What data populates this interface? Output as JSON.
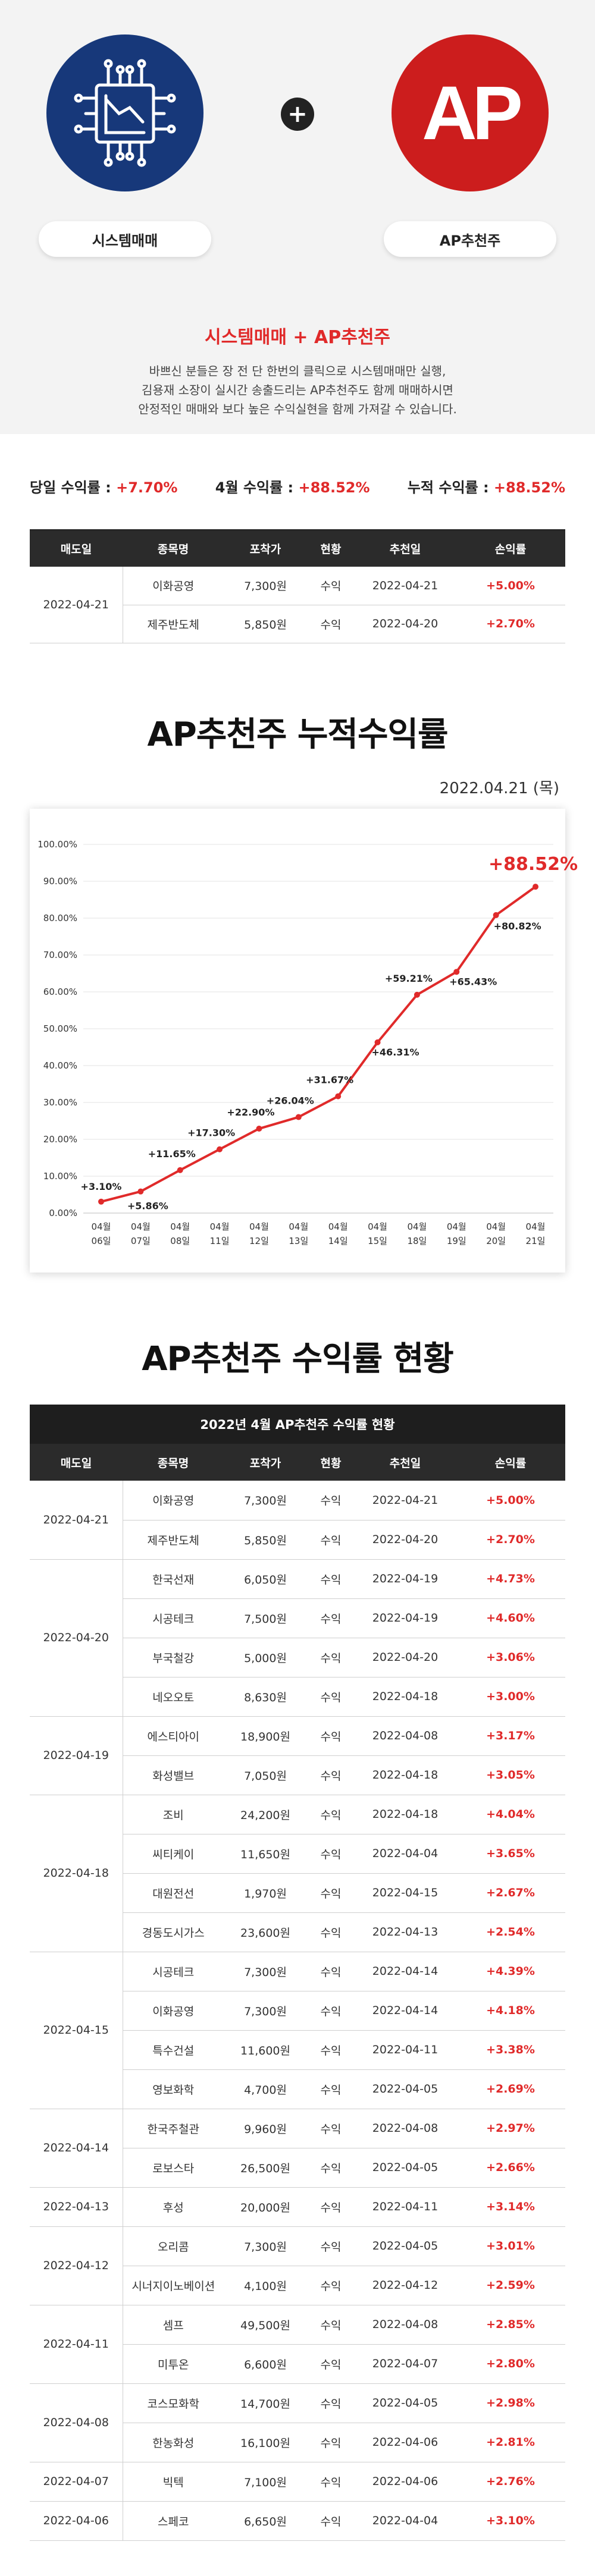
{
  "hero": {
    "left_label": "시스템매매",
    "right_label": "AP추천주",
    "right_logo_text": "AP",
    "plus": "+",
    "colors": {
      "blue": "#17387a",
      "red": "#cc1d1d"
    }
  },
  "intro": {
    "title": "시스템매매 + AP추천주",
    "line1": "바쁘신 분들은 장 전 단 한번의 클릭으로 시스템매매만 실행,",
    "line2": "김용재 소장이 실시간 송출드리는 AP추천주도 함께 매매하시면",
    "line3": "안정적인 매매와 보다 높은 수익실현을 함께 가져갈 수 있습니다."
  },
  "summary": {
    "daily_label": "당일 수익률 : ",
    "daily_value": "+7.70%",
    "month_label": "4월 수익률 : ",
    "month_value": "+88.52%",
    "total_label": "누적 수익률 : ",
    "total_value": "+88.52%"
  },
  "headers": [
    "매도일",
    "종목명",
    "포착가",
    "현황",
    "추천일",
    "손익률"
  ],
  "today_table": {
    "groups": [
      {
        "date": "2022-04-21",
        "rows": [
          {
            "name": "이화공영",
            "price": "7,300원",
            "status": "수익",
            "rec": "2022-04-21",
            "pct": "+5.00%"
          },
          {
            "name": "제주반도체",
            "price": "5,850원",
            "status": "수익",
            "rec": "2022-04-20",
            "pct": "+2.70%"
          }
        ]
      }
    ]
  },
  "chart_section": {
    "title": "AP추천주 누적수익률",
    "date": "2022.04.21 (목)"
  },
  "chart_data": {
    "type": "line",
    "title": "",
    "xlabel": "",
    "ylabel": "",
    "ylim": [
      0,
      100
    ],
    "y_ticks": [
      "0.00%",
      "10.00%",
      "20.00%",
      "30.00%",
      "40.00%",
      "50.00%",
      "60.00%",
      "70.00%",
      "80.00%",
      "90.00%",
      "100.00%"
    ],
    "x_labels": [
      [
        "04월",
        "06일"
      ],
      [
        "04월",
        "07일"
      ],
      [
        "04월",
        "08일"
      ],
      [
        "04월",
        "11일"
      ],
      [
        "04월",
        "12일"
      ],
      [
        "04월",
        "13일"
      ],
      [
        "04월",
        "14일"
      ],
      [
        "04월",
        "15일"
      ],
      [
        "04월",
        "18일"
      ],
      [
        "04월",
        "19일"
      ],
      [
        "04월",
        "20일"
      ],
      [
        "04월",
        "21일"
      ]
    ],
    "values": [
      3.1,
      5.86,
      11.65,
      17.3,
      22.9,
      26.04,
      31.67,
      46.31,
      59.21,
      65.43,
      80.82,
      88.52
    ],
    "labels": [
      "+3.10%",
      "+5.86%",
      "+11.65%",
      "+17.30%",
      "+22.90%",
      "+26.04%",
      "+31.67%",
      "+46.31%",
      "+59.21%",
      "+65.43%",
      "+80.82%",
      "+88.52%"
    ],
    "grid": true,
    "color": "#e02a2a"
  },
  "status_section": {
    "title": "AP추천주 수익률 현황",
    "caption": "2022년 4월 AP추천주 수익률 현황"
  },
  "full_table": {
    "groups": [
      {
        "date": "2022-04-21",
        "rows": [
          {
            "name": "이화공영",
            "price": "7,300원",
            "status": "수익",
            "rec": "2022-04-21",
            "pct": "+5.00%"
          },
          {
            "name": "제주반도체",
            "price": "5,850원",
            "status": "수익",
            "rec": "2022-04-20",
            "pct": "+2.70%"
          }
        ]
      },
      {
        "date": "2022-04-20",
        "rows": [
          {
            "name": "한국선재",
            "price": "6,050원",
            "status": "수익",
            "rec": "2022-04-19",
            "pct": "+4.73%"
          },
          {
            "name": "시공테크",
            "price": "7,500원",
            "status": "수익",
            "rec": "2022-04-19",
            "pct": "+4.60%"
          },
          {
            "name": "부국철강",
            "price": "5,000원",
            "status": "수익",
            "rec": "2022-04-20",
            "pct": "+3.06%"
          },
          {
            "name": "네오오토",
            "price": "8,630원",
            "status": "수익",
            "rec": "2022-04-18",
            "pct": "+3.00%"
          }
        ]
      },
      {
        "date": "2022-04-19",
        "rows": [
          {
            "name": "에스티아이",
            "price": "18,900원",
            "status": "수익",
            "rec": "2022-04-08",
            "pct": "+3.17%"
          },
          {
            "name": "화성밸브",
            "price": "7,050원",
            "status": "수익",
            "rec": "2022-04-18",
            "pct": "+3.05%"
          }
        ]
      },
      {
        "date": "2022-04-18",
        "rows": [
          {
            "name": "조비",
            "price": "24,200원",
            "status": "수익",
            "rec": "2022-04-18",
            "pct": "+4.04%"
          },
          {
            "name": "씨티케이",
            "price": "11,650원",
            "status": "수익",
            "rec": "2022-04-04",
            "pct": "+3.65%"
          },
          {
            "name": "대원전선",
            "price": "1,970원",
            "status": "수익",
            "rec": "2022-04-15",
            "pct": "+2.67%"
          },
          {
            "name": "경동도시가스",
            "price": "23,600원",
            "status": "수익",
            "rec": "2022-04-13",
            "pct": "+2.54%"
          }
        ]
      },
      {
        "date": "2022-04-15",
        "rows": [
          {
            "name": "시공테크",
            "price": "7,300원",
            "status": "수익",
            "rec": "2022-04-14",
            "pct": "+4.39%"
          },
          {
            "name": "이화공영",
            "price": "7,300원",
            "status": "수익",
            "rec": "2022-04-14",
            "pct": "+4.18%"
          },
          {
            "name": "특수건설",
            "price": "11,600원",
            "status": "수익",
            "rec": "2022-04-11",
            "pct": "+3.38%"
          },
          {
            "name": "영보화학",
            "price": "4,700원",
            "status": "수익",
            "rec": "2022-04-05",
            "pct": "+2.69%"
          }
        ]
      },
      {
        "date": "2022-04-14",
        "rows": [
          {
            "name": "한국주철관",
            "price": "9,960원",
            "status": "수익",
            "rec": "2022-04-08",
            "pct": "+2.97%"
          },
          {
            "name": "로보스타",
            "price": "26,500원",
            "status": "수익",
            "rec": "2022-04-05",
            "pct": "+2.66%"
          }
        ]
      },
      {
        "date": "2022-04-13",
        "rows": [
          {
            "name": "후성",
            "price": "20,000원",
            "status": "수익",
            "rec": "2022-04-11",
            "pct": "+3.14%"
          }
        ]
      },
      {
        "date": "2022-04-12",
        "rows": [
          {
            "name": "오리콤",
            "price": "7,300원",
            "status": "수익",
            "rec": "2022-04-05",
            "pct": "+3.01%"
          },
          {
            "name": "시너지이노베이션",
            "price": "4,100원",
            "status": "수익",
            "rec": "2022-04-12",
            "pct": "+2.59%"
          }
        ]
      },
      {
        "date": "2022-04-11",
        "rows": [
          {
            "name": "셈프",
            "price": "49,500원",
            "status": "수익",
            "rec": "2022-04-08",
            "pct": "+2.85%"
          },
          {
            "name": "미투온",
            "price": "6,600원",
            "status": "수익",
            "rec": "2022-04-07",
            "pct": "+2.80%"
          }
        ]
      },
      {
        "date": "2022-04-08",
        "rows": [
          {
            "name": "코스모화학",
            "price": "14,700원",
            "status": "수익",
            "rec": "2022-04-05",
            "pct": "+2.98%"
          },
          {
            "name": "한농화성",
            "price": "16,100원",
            "status": "수익",
            "rec": "2022-04-06",
            "pct": "+2.81%"
          }
        ]
      },
      {
        "date": "2022-04-07",
        "rows": [
          {
            "name": "빅텍",
            "price": "7,100원",
            "status": "수익",
            "rec": "2022-04-06",
            "pct": "+2.76%"
          }
        ]
      },
      {
        "date": "2022-04-06",
        "rows": [
          {
            "name": "스페코",
            "price": "6,650원",
            "status": "수익",
            "rec": "2022-04-04",
            "pct": "+3.10%"
          }
        ]
      }
    ]
  }
}
